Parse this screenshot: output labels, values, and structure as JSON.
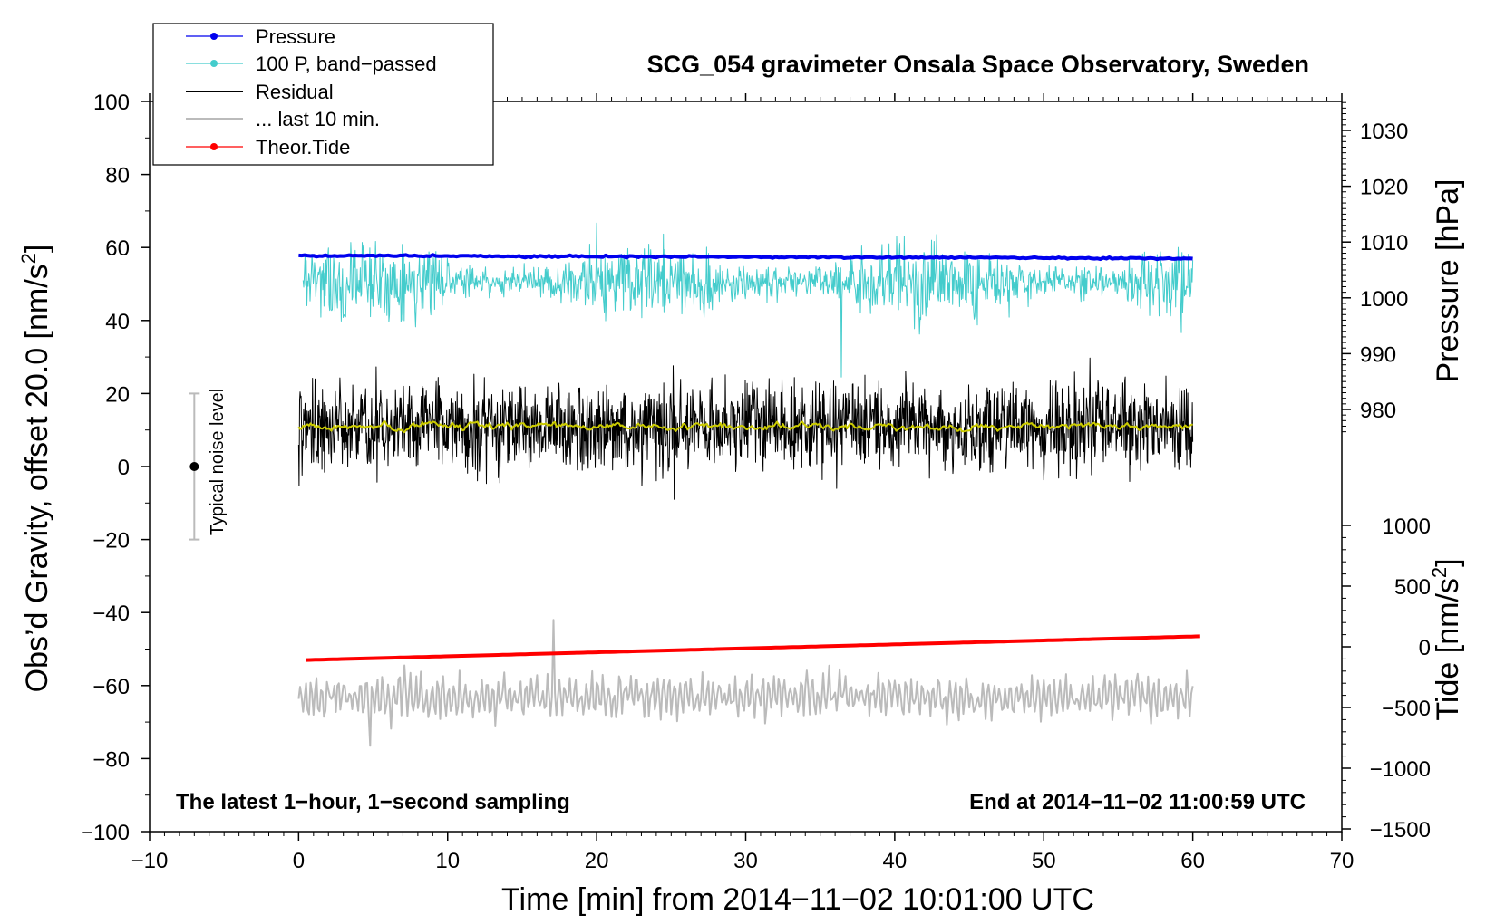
{
  "chart_data": {
    "type": "line",
    "title": "SCG_054 gravimeter Onsala Space Observatory, Sweden",
    "xlabel": "Time [min] from 2014−11−02 10:01:00 UTC",
    "ylabel_left": "Obs’d Gravity, offset 20.0 [nm/s",
    "ylabel_left_sup": "2",
    "ylabel_left_end": "]",
    "ylabel_pressure": "Pressure [hPa]",
    "ylabel_tide": "Tide [nm/s",
    "ylabel_tide_sup": "2",
    "ylabel_tide_end": "]",
    "xlim": [
      -10,
      70
    ],
    "ylim": [
      -100,
      100
    ],
    "x_ticks": [
      "−10",
      "0",
      "10",
      "20",
      "30",
      "40",
      "50",
      "60",
      "70"
    ],
    "y_ticks": [
      "−100",
      "−80",
      "−60",
      "−40",
      "−20",
      "0",
      "20",
      "40",
      "60",
      "80",
      "100"
    ],
    "pressure_axis": {
      "ticks": [
        "980",
        "990",
        "1000",
        "1010",
        "1020",
        "1030"
      ]
    },
    "tide_axis": {
      "ticks": [
        "−1500",
        "−1000",
        "−500",
        "0",
        "500",
        "1000"
      ]
    },
    "notes": {
      "left": "The latest 1−hour, 1−second sampling",
      "right": "End at 2014−11−02 11:00:59 UTC",
      "noise": "Typical noise level"
    },
    "noise_bar": {
      "x": -7,
      "center": 0,
      "low": -20,
      "high": 20
    },
    "series": [
      {
        "name": "Pressure",
        "color": "#0000ee",
        "x_range": [
          0,
          60
        ],
        "start": 57.8,
        "end": 57.0,
        "marker": true
      },
      {
        "name": "100 P, band−passed",
        "color": "#44cccc",
        "x_range": [
          0.3,
          60
        ],
        "mean": 50.5,
        "spread": 4.5,
        "min": 24.5,
        "max": 66.7,
        "marker": true
      },
      {
        "name": "Residual",
        "color": "#000000",
        "x_range": [
          0,
          60
        ],
        "mean": 11.0,
        "spread": 6.0,
        "min": -9.0,
        "max": 29.7,
        "marker": false
      },
      {
        "name": "... last 10 min.",
        "color": "#bbbbbb",
        "x_range": [
          0,
          60
        ],
        "mean": -63.0,
        "spread": 4.0,
        "min": -76.5,
        "max": -42.0,
        "marker": false
      },
      {
        "name": "Theor.Tide",
        "color": "#ff0000",
        "x_range": [
          0.5,
          60.5
        ],
        "start": -53.0,
        "end": -46.5,
        "marker": true
      }
    ],
    "smoothed_residual": {
      "color": "#cccc00",
      "mean": 11.0
    }
  }
}
